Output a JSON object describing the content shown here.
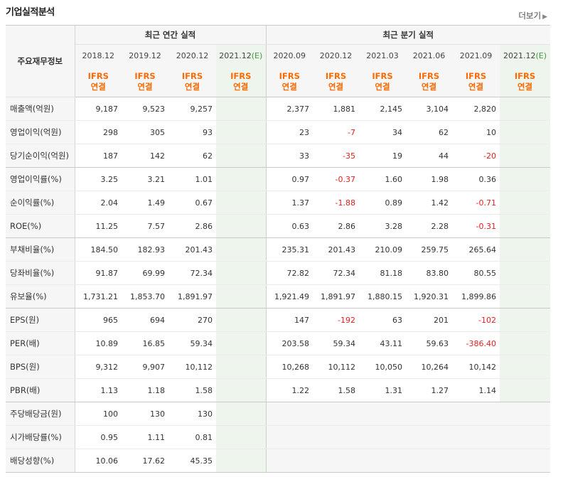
{
  "title": "기업실적분석",
  "more_label": "더보기",
  "header": {
    "corner": "주요재무정보",
    "annual_group": "최근 연간 실적",
    "quarter_group": "최근 분기 실적",
    "annual_periods": [
      "2018.12",
      "2019.12",
      "2020.12",
      "2021.12"
    ],
    "quarter_periods": [
      "2020.09",
      "2020.12",
      "2021.03",
      "2021.06",
      "2021.09",
      "2021.12"
    ],
    "estimate_mark": "(E)",
    "ifrs": "IFRS",
    "consolidated": "연결"
  },
  "rows": [
    {
      "label": "매출액(억원)",
      "annual": [
        "9,187",
        "9,523",
        "9,257",
        ""
      ],
      "quarter": [
        "2,377",
        "1,881",
        "2,145",
        "3,104",
        "2,820",
        ""
      ]
    },
    {
      "label": "영업이익(억원)",
      "annual": [
        "298",
        "305",
        "93",
        ""
      ],
      "quarter": [
        "23",
        "-7",
        "34",
        "62",
        "10",
        ""
      ]
    },
    {
      "label": "당기순이익(억원)",
      "annual": [
        "187",
        "142",
        "62",
        ""
      ],
      "quarter": [
        "33",
        "-35",
        "19",
        "44",
        "-20",
        ""
      ]
    },
    {
      "label": "영업이익률(%)",
      "annual": [
        "3.25",
        "3.21",
        "1.01",
        ""
      ],
      "quarter": [
        "0.97",
        "-0.37",
        "1.60",
        "1.98",
        "0.36",
        ""
      ]
    },
    {
      "label": "순이익률(%)",
      "annual": [
        "2.04",
        "1.49",
        "0.67",
        ""
      ],
      "quarter": [
        "1.37",
        "-1.88",
        "0.89",
        "1.42",
        "-0.71",
        ""
      ]
    },
    {
      "label": "ROE(%)",
      "annual": [
        "11.25",
        "7.57",
        "2.86",
        ""
      ],
      "quarter": [
        "0.63",
        "2.86",
        "3.28",
        "2.28",
        "-0.31",
        ""
      ]
    },
    {
      "label": "부채비율(%)",
      "annual": [
        "184.50",
        "182.93",
        "201.43",
        ""
      ],
      "quarter": [
        "235.31",
        "201.43",
        "210.09",
        "259.75",
        "265.64",
        ""
      ]
    },
    {
      "label": "당좌비율(%)",
      "annual": [
        "91.87",
        "69.99",
        "72.34",
        ""
      ],
      "quarter": [
        "72.82",
        "72.34",
        "81.18",
        "83.80",
        "80.55",
        ""
      ]
    },
    {
      "label": "유보율(%)",
      "annual": [
        "1,731.21",
        "1,853.70",
        "1,891.97",
        ""
      ],
      "quarter": [
        "1,921.49",
        "1,891.97",
        "1,880.15",
        "1,920.31",
        "1,899.86",
        ""
      ]
    },
    {
      "label": "EPS(원)",
      "annual": [
        "965",
        "694",
        "270",
        ""
      ],
      "quarter": [
        "147",
        "-192",
        "63",
        "201",
        "-102",
        ""
      ]
    },
    {
      "label": "PER(배)",
      "annual": [
        "10.89",
        "16.85",
        "59.34",
        ""
      ],
      "quarter": [
        "203.58",
        "59.34",
        "43.11",
        "59.63",
        "-386.40",
        ""
      ]
    },
    {
      "label": "BPS(원)",
      "annual": [
        "9,312",
        "9,907",
        "10,112",
        ""
      ],
      "quarter": [
        "10,268",
        "10,112",
        "10,050",
        "10,264",
        "10,142",
        ""
      ]
    },
    {
      "label": "PBR(배)",
      "annual": [
        "1.13",
        "1.18",
        "1.58",
        ""
      ],
      "quarter": [
        "1.22",
        "1.58",
        "1.31",
        "1.27",
        "1.14",
        ""
      ]
    },
    {
      "label": "주당배당금(원)",
      "annual": [
        "100",
        "130",
        "130",
        ""
      ],
      "quarter": null
    },
    {
      "label": "시가배당률(%)",
      "annual": [
        "0.95",
        "1.11",
        "0.81",
        ""
      ],
      "quarter": null
    },
    {
      "label": "배당성향(%)",
      "annual": [
        "10.06",
        "17.62",
        "45.35",
        ""
      ],
      "quarter": null
    }
  ],
  "group_ends": [
    2,
    5,
    8,
    12
  ],
  "colors": {
    "ifrs": "#ff6a00",
    "negative": "#e02020",
    "estimate_bg": "#eef5ec",
    "estimate_mark": "#3f9b3a",
    "header_bg": "#f6f6f6"
  }
}
